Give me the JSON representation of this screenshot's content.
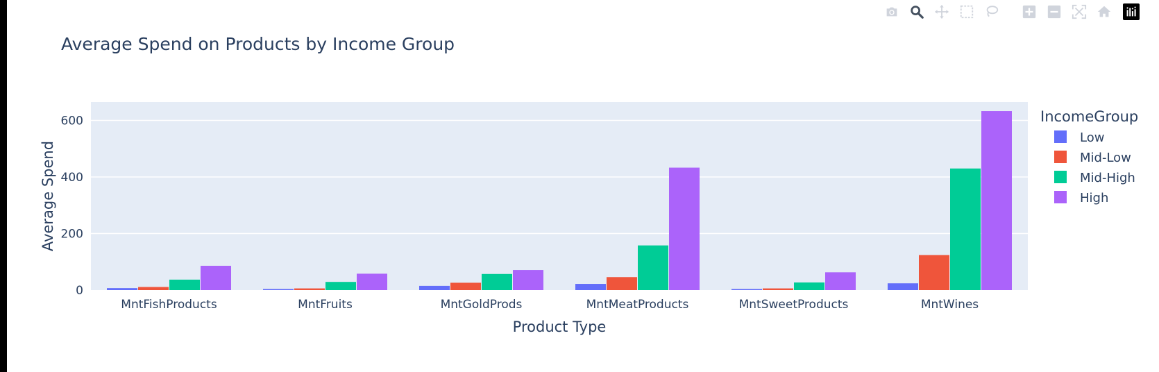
{
  "modebar": {
    "buttons": [
      {
        "icon": "camera-icon",
        "name": "download-plot-button"
      },
      {
        "icon": "zoom-icon",
        "name": "zoom-button"
      },
      {
        "icon": "pan-icon",
        "name": "pan-button"
      },
      {
        "icon": "box-select-icon",
        "name": "box-select-button"
      },
      {
        "icon": "lasso-select-icon",
        "name": "lasso-select-button"
      },
      {
        "icon": "zoom-in-icon",
        "name": "zoom-in-button"
      },
      {
        "icon": "zoom-out-icon",
        "name": "zoom-out-button"
      },
      {
        "icon": "autoscale-icon",
        "name": "autoscale-button"
      },
      {
        "icon": "home-icon",
        "name": "reset-axes-button"
      },
      {
        "icon": "plotly-logo-icon",
        "name": "plotly-logo"
      }
    ]
  },
  "chart_data": {
    "type": "bar",
    "title": "Average Spend on Products by Income Group",
    "xlabel": "Product Type",
    "ylabel": "Average Spend",
    "categories": [
      "MntFishProducts",
      "MntFruits",
      "MntGoldProds",
      "MntMeatProducts",
      "MntSweetProducts",
      "MntWines"
    ],
    "ylim": [
      0,
      665
    ],
    "yticks": [
      0,
      200,
      400,
      600
    ],
    "grid": true,
    "legend": {
      "title": "IncomeGroup",
      "position": "right"
    },
    "series": [
      {
        "name": "Low",
        "color": "#636efa",
        "values": [
          7,
          4,
          15,
          22,
          4,
          24
        ]
      },
      {
        "name": "Mid-Low",
        "color": "#ef553b",
        "values": [
          11,
          6,
          26,
          46,
          6,
          124
        ]
      },
      {
        "name": "Mid-High",
        "color": "#00cc96",
        "values": [
          37,
          29,
          57,
          158,
          27,
          430
        ]
      },
      {
        "name": "High",
        "color": "#ab63fa",
        "values": [
          86,
          58,
          71,
          433,
          63,
          633
        ]
      }
    ]
  }
}
